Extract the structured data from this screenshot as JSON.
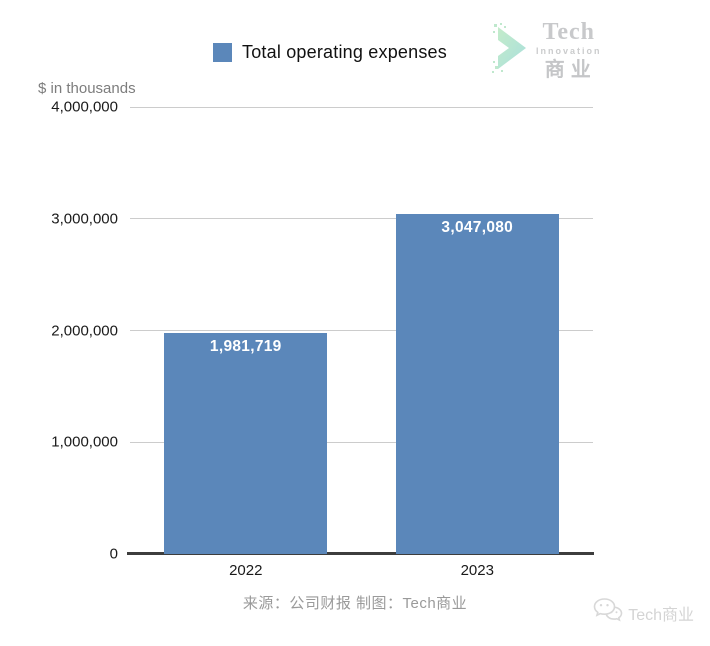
{
  "legend": {
    "label": "Total operating expenses",
    "swatch_color": "#5b87ba"
  },
  "logo": {
    "line1": "Tech",
    "line2": "Innovation",
    "line3": "商业",
    "icon": "chevron-right-icon"
  },
  "chart_data": {
    "type": "bar",
    "title": "",
    "units_label": "$ in thousands",
    "categories": [
      "2022",
      "2023"
    ],
    "series": [
      {
        "name": "Total operating expenses",
        "values": [
          1981719,
          3047080
        ]
      }
    ],
    "value_labels": [
      "1,981,719",
      "3,047,080"
    ],
    "ylim": [
      0,
      4000000
    ],
    "yticks": [
      0,
      1000000,
      2000000,
      3000000,
      4000000
    ],
    "ytick_labels": [
      "0",
      "1,000,000",
      "2,000,000",
      "3,000,000",
      "4,000,000"
    ],
    "grid": true,
    "legend_position": "top",
    "bar_color": "#5b87ba",
    "value_label_color": "#ffffff"
  },
  "footer": {
    "source_text": "来源：公司财报 制图：Tech商业",
    "watermark": {
      "label": "Tech商业",
      "icon": "wechat-icon"
    }
  }
}
